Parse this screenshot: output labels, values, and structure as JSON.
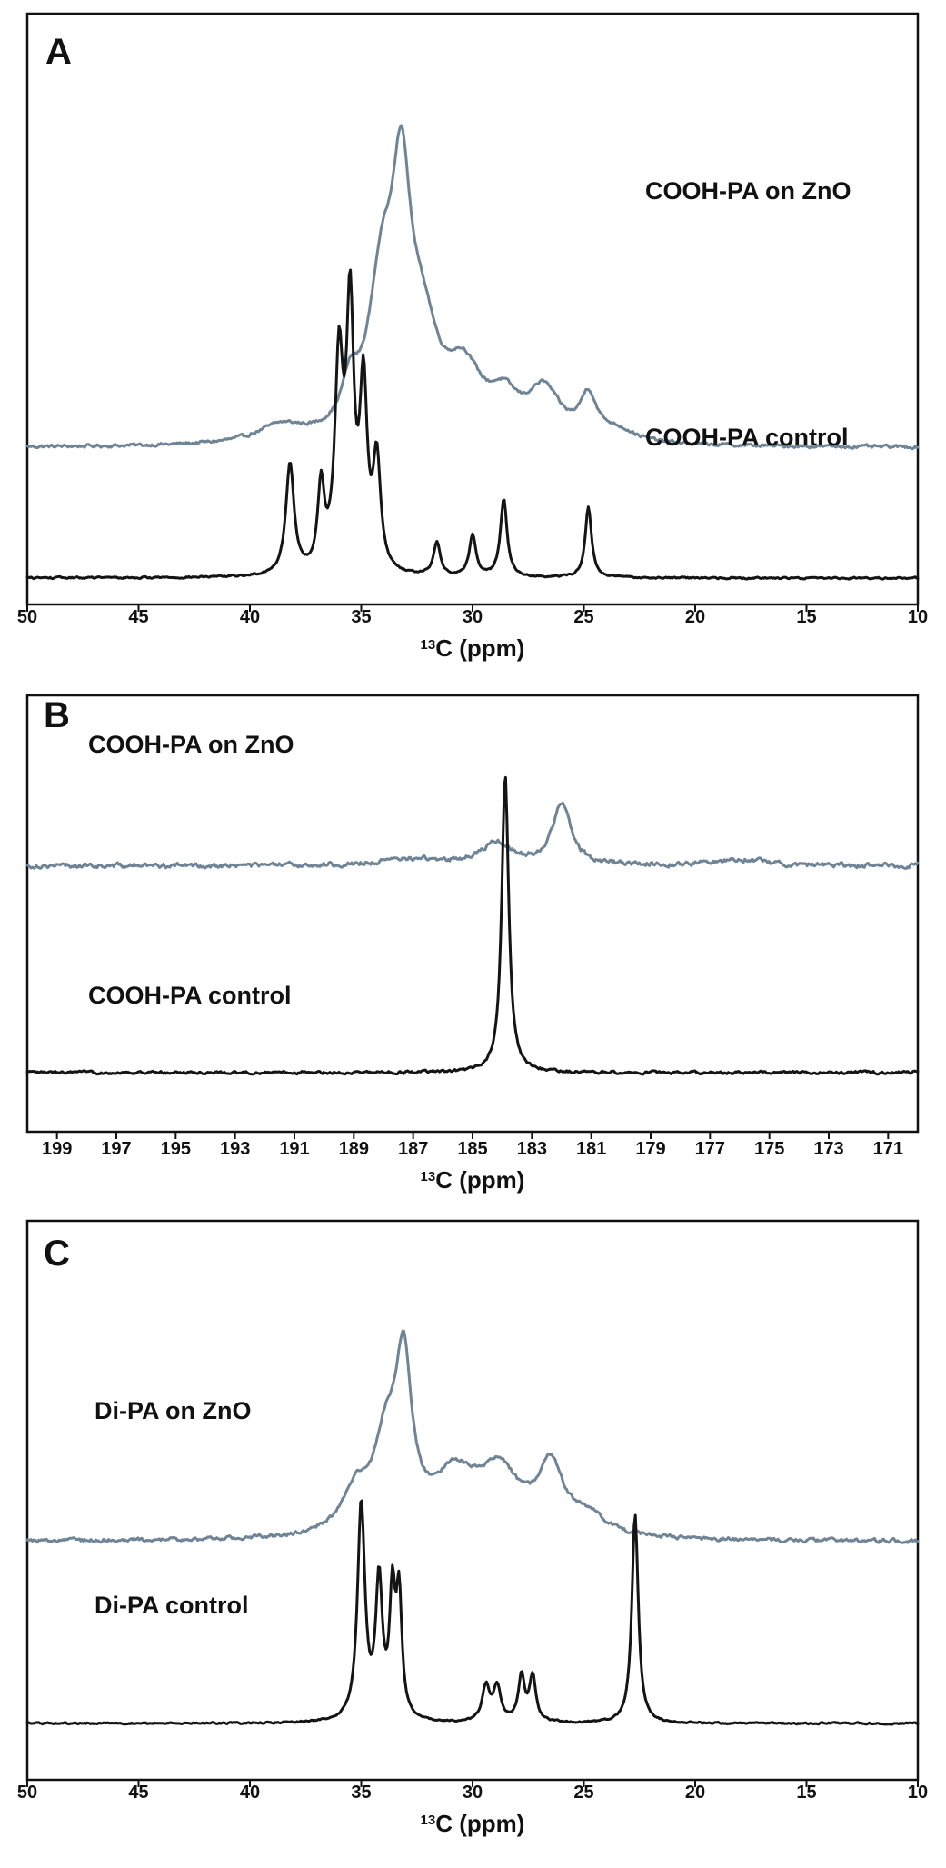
{
  "colors": {
    "on_zno": "#6f8496",
    "control": "#141414",
    "frame": "#111111"
  },
  "chart_data": [
    {
      "type": "line",
      "panel": "A",
      "xlabel_sup": "13",
      "xlabel_text": "C (ppm)",
      "x_reversed": true,
      "xlim": [
        50,
        10
      ],
      "xticks": [
        50,
        45,
        40,
        35,
        30,
        25,
        20,
        15,
        10
      ],
      "grid": false,
      "series": [
        {
          "name": "COOH-PA on ZnO",
          "color_key": "on_zno",
          "baseline": 0.35,
          "noise": 0.007,
          "peaks": [
            {
              "center": 38.6,
              "height": 0.045,
              "width": 1.3
            },
            {
              "center": 35.5,
              "height": 0.11,
              "width": 0.45
            },
            {
              "center": 34.1,
              "height": 0.36,
              "width": 0.7
            },
            {
              "center": 33.2,
              "height": 0.61,
              "width": 0.55
            },
            {
              "center": 32.2,
              "height": 0.22,
              "width": 0.8
            },
            {
              "center": 30.4,
              "height": 0.17,
              "width": 1.0
            },
            {
              "center": 28.6,
              "height": 0.09,
              "width": 0.8
            },
            {
              "center": 26.8,
              "height": 0.13,
              "width": 0.9
            },
            {
              "center": 24.8,
              "height": 0.11,
              "width": 0.45
            },
            {
              "center": 23.5,
              "height": 0.03,
              "width": 1.0
            }
          ]
        },
        {
          "name": "COOH-PA control",
          "color_key": "control",
          "baseline": 0.0,
          "noise": 0.004,
          "peaks": [
            {
              "center": 38.2,
              "height": 0.3,
              "width": 0.22
            },
            {
              "center": 36.8,
              "height": 0.22,
              "width": 0.18
            },
            {
              "center": 36.0,
              "height": 0.55,
              "width": 0.22
            },
            {
              "center": 35.5,
              "height": 0.68,
              "width": 0.2
            },
            {
              "center": 34.9,
              "height": 0.48,
              "width": 0.2
            },
            {
              "center": 34.3,
              "height": 0.29,
              "width": 0.2
            },
            {
              "center": 31.6,
              "height": 0.09,
              "width": 0.18
            },
            {
              "center": 30.0,
              "height": 0.11,
              "width": 0.18
            },
            {
              "center": 28.6,
              "height": 0.21,
              "width": 0.18
            },
            {
              "center": 24.8,
              "height": 0.19,
              "width": 0.17
            }
          ]
        }
      ]
    },
    {
      "type": "line",
      "panel": "B",
      "xlabel_sup": "13",
      "xlabel_text": "C (ppm)",
      "x_reversed": true,
      "xlim": [
        200,
        170
      ],
      "xticks": [
        199,
        197,
        195,
        193,
        191,
        189,
        187,
        185,
        183,
        181,
        179,
        177,
        175,
        173,
        171
      ],
      "grid": false,
      "series": [
        {
          "name": "COOH-PA on ZnO",
          "color_key": "on_zno",
          "baseline": 0.65,
          "noise": 0.012,
          "peaks": [
            {
              "center": 187.0,
              "height": 0.02,
              "width": 1.2
            },
            {
              "center": 184.2,
              "height": 0.07,
              "width": 0.6
            },
            {
              "center": 182.0,
              "height": 0.19,
              "width": 0.38
            },
            {
              "center": 176.0,
              "height": 0.02,
              "width": 1.0
            }
          ]
        },
        {
          "name": "COOH-PA control",
          "color_key": "control",
          "baseline": 0.0,
          "noise": 0.007,
          "peaks": [
            {
              "center": 183.9,
              "height": 0.94,
              "width": 0.14
            }
          ]
        }
      ]
    },
    {
      "type": "line",
      "panel": "C",
      "xlabel_sup": "13",
      "xlabel_text": "C (ppm)",
      "x_reversed": true,
      "xlim": [
        50,
        10
      ],
      "xticks": [
        50,
        45,
        40,
        35,
        30,
        25,
        20,
        15,
        10
      ],
      "grid": false,
      "series": [
        {
          "name": "Di-PA on ZnO",
          "color_key": "on_zno",
          "baseline": 0.52,
          "noise": 0.009,
          "peaks": [
            {
              "center": 35.2,
              "height": 0.12,
              "width": 0.8
            },
            {
              "center": 33.9,
              "height": 0.22,
              "width": 0.6
            },
            {
              "center": 33.1,
              "height": 0.46,
              "width": 0.45
            },
            {
              "center": 30.8,
              "height": 0.16,
              "width": 1.2
            },
            {
              "center": 28.8,
              "height": 0.17,
              "width": 1.1
            },
            {
              "center": 26.5,
              "height": 0.19,
              "width": 0.7
            },
            {
              "center": 24.8,
              "height": 0.05,
              "width": 1.0
            }
          ]
        },
        {
          "name": "Di-PA control",
          "color_key": "control",
          "baseline": 0.0,
          "noise": 0.004,
          "peaks": [
            {
              "center": 35.0,
              "height": 0.62,
              "width": 0.2
            },
            {
              "center": 34.2,
              "height": 0.39,
              "width": 0.18
            },
            {
              "center": 33.6,
              "height": 0.34,
              "width": 0.15
            },
            {
              "center": 33.3,
              "height": 0.34,
              "width": 0.15
            },
            {
              "center": 29.4,
              "height": 0.1,
              "width": 0.2
            },
            {
              "center": 28.9,
              "height": 0.1,
              "width": 0.2
            },
            {
              "center": 27.8,
              "height": 0.13,
              "width": 0.17
            },
            {
              "center": 27.3,
              "height": 0.13,
              "width": 0.17
            },
            {
              "center": 22.7,
              "height": 0.6,
              "width": 0.17
            }
          ]
        }
      ]
    }
  ]
}
